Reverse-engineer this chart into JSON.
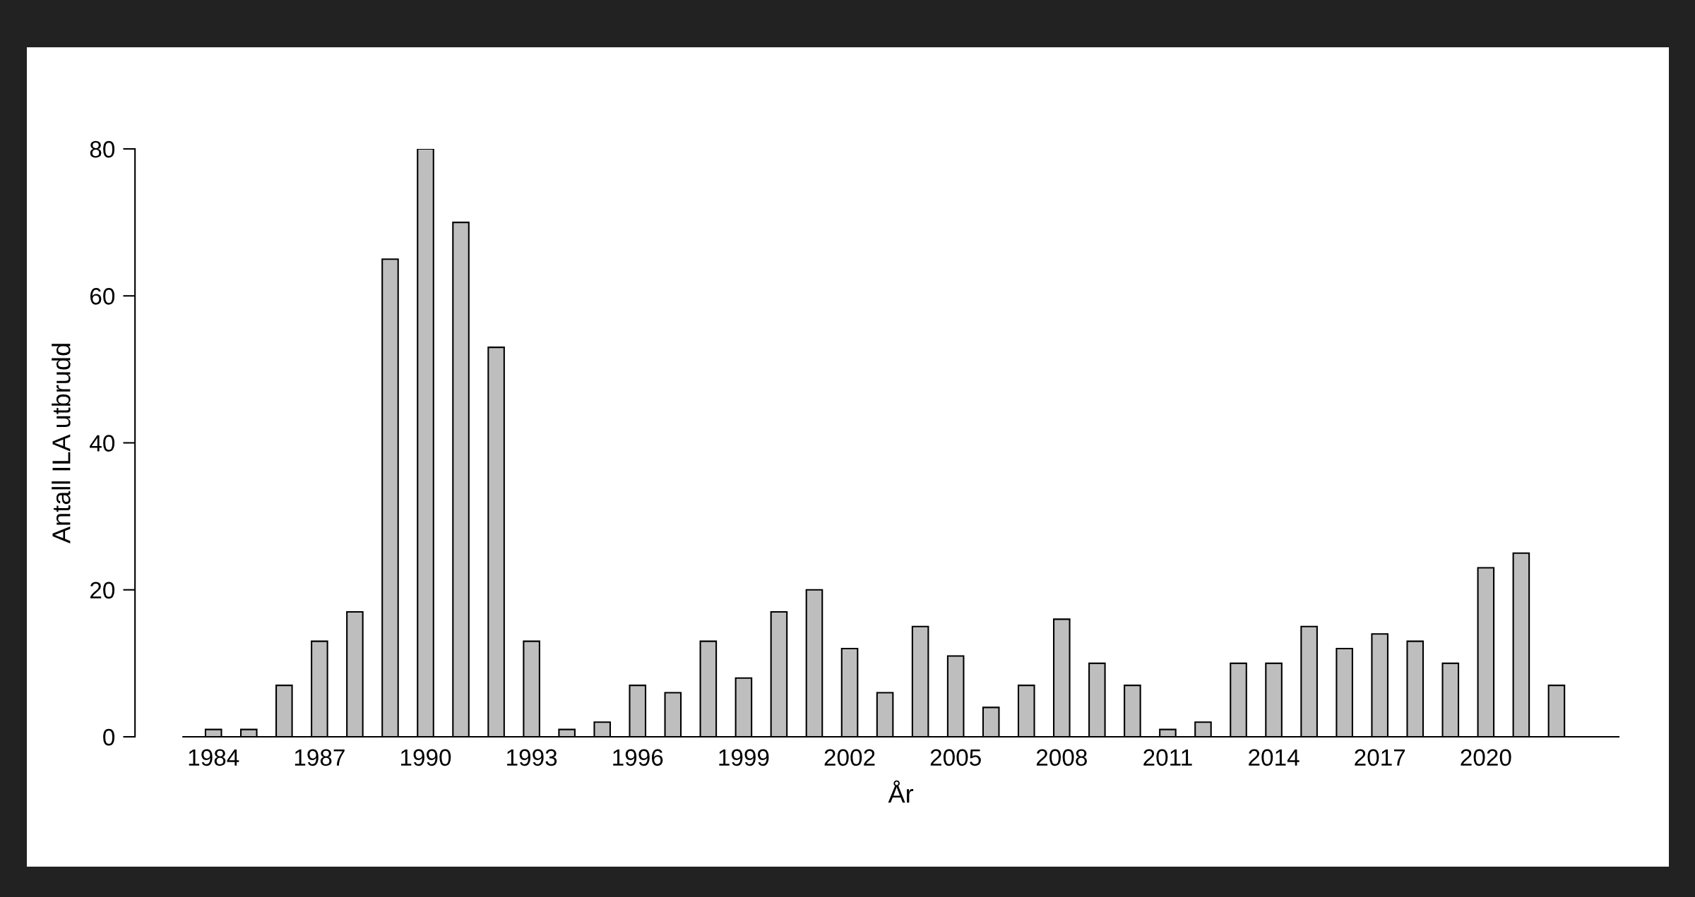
{
  "chart_data": {
    "type": "bar",
    "xlabel": "År",
    "ylabel": "Antall ILA utbrudd",
    "categories": [
      "1984",
      null,
      null,
      "1987",
      null,
      null,
      "1990",
      null,
      null,
      "1993",
      null,
      null,
      "1996",
      null,
      null,
      "1999",
      null,
      null,
      "2002",
      null,
      null,
      "2005",
      null,
      null,
      "2008",
      null,
      null,
      "2011",
      null,
      null,
      "2014",
      null,
      null,
      "2017",
      null,
      null,
      "2020",
      null,
      null
    ],
    "values": [
      1,
      1,
      7,
      13,
      17,
      65,
      80,
      70,
      53,
      13,
      1,
      2,
      7,
      6,
      13,
      8,
      17,
      20,
      12,
      6,
      15,
      11,
      4,
      7,
      16,
      10,
      7,
      1,
      2,
      10,
      10,
      15,
      12,
      14,
      13,
      10,
      23,
      25,
      7
    ],
    "color": "#bebebe",
    "ylim": [
      0,
      80
    ],
    "yticks": [
      0,
      20,
      40,
      60,
      80
    ],
    "grid": false,
    "legend": false
  }
}
